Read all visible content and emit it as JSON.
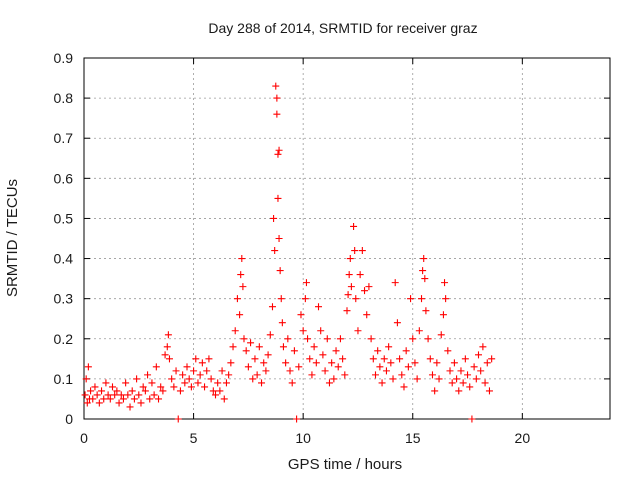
{
  "chart_data": {
    "type": "scatter",
    "title": "Day 288 of 2014, SRMTID for receiver graz",
    "xlabel": "GPS time / hours",
    "ylabel": "SRMTID / TECUs",
    "xlim": [
      0,
      24
    ],
    "ylim": [
      0,
      0.9
    ],
    "xticks": [
      0,
      5,
      10,
      15,
      20
    ],
    "xtick_labels": [
      "0",
      "5",
      "10",
      "15",
      "20"
    ],
    "yticks": [
      0,
      0.1,
      0.2,
      0.3,
      0.4,
      0.5,
      0.6,
      0.7,
      0.8,
      0.9
    ],
    "ytick_labels": [
      "0",
      "0.1",
      "0.2",
      "0.3",
      "0.4",
      "0.5",
      "0.6",
      "0.7",
      "0.8",
      "0.9"
    ],
    "grid": true,
    "marker": "plus",
    "marker_color": "#ff0000",
    "series": [
      {
        "name": "SRMTID",
        "points": [
          [
            0.05,
            0.06
          ],
          [
            0.1,
            0.1
          ],
          [
            0.15,
            0.04
          ],
          [
            0.2,
            0.13
          ],
          [
            0.25,
            0.05
          ],
          [
            0.3,
            0.07
          ],
          [
            0.4,
            0.05
          ],
          [
            0.5,
            0.08
          ],
          [
            0.6,
            0.06
          ],
          [
            0.7,
            0.04
          ],
          [
            0.8,
            0.07
          ],
          [
            0.9,
            0.05
          ],
          [
            1.0,
            0.09
          ],
          [
            1.1,
            0.06
          ],
          [
            1.2,
            0.05
          ],
          [
            1.3,
            0.08
          ],
          [
            1.4,
            0.06
          ],
          [
            1.5,
            0.07
          ],
          [
            1.6,
            0.04
          ],
          [
            1.7,
            0.06
          ],
          [
            1.8,
            0.05
          ],
          [
            1.9,
            0.09
          ],
          [
            2.0,
            0.06
          ],
          [
            2.1,
            0.03
          ],
          [
            2.2,
            0.07
          ],
          [
            2.3,
            0.05
          ],
          [
            2.4,
            0.1
          ],
          [
            2.5,
            0.06
          ],
          [
            2.6,
            0.04
          ],
          [
            2.7,
            0.08
          ],
          [
            2.8,
            0.07
          ],
          [
            2.9,
            0.11
          ],
          [
            3.0,
            0.05
          ],
          [
            3.1,
            0.09
          ],
          [
            3.2,
            0.06
          ],
          [
            3.3,
            0.13
          ],
          [
            3.4,
            0.05
          ],
          [
            3.5,
            0.08
          ],
          [
            3.6,
            0.07
          ],
          [
            3.7,
            0.16
          ],
          [
            3.8,
            0.18
          ],
          [
            3.85,
            0.21
          ],
          [
            3.9,
            0.15
          ],
          [
            4.0,
            0.1
          ],
          [
            4.1,
            0.08
          ],
          [
            4.2,
            0.12
          ],
          [
            4.3,
            0.0
          ],
          [
            4.4,
            0.07
          ],
          [
            4.5,
            0.11
          ],
          [
            4.6,
            0.09
          ],
          [
            4.7,
            0.13
          ],
          [
            4.8,
            0.1
          ],
          [
            4.9,
            0.08
          ],
          [
            5.0,
            0.12
          ],
          [
            5.1,
            0.15
          ],
          [
            5.2,
            0.09
          ],
          [
            5.3,
            0.11
          ],
          [
            5.4,
            0.14
          ],
          [
            5.5,
            0.08
          ],
          [
            5.6,
            0.12
          ],
          [
            5.7,
            0.15
          ],
          [
            5.8,
            0.1
          ],
          [
            5.9,
            0.07
          ],
          [
            6.0,
            0.06
          ],
          [
            6.1,
            0.09
          ],
          [
            6.2,
            0.07
          ],
          [
            6.3,
            0.12
          ],
          [
            6.4,
            0.05
          ],
          [
            6.5,
            0.09
          ],
          [
            6.6,
            0.11
          ],
          [
            6.7,
            0.14
          ],
          [
            6.8,
            0.18
          ],
          [
            6.9,
            0.22
          ],
          [
            7.0,
            0.3
          ],
          [
            7.1,
            0.26
          ],
          [
            7.15,
            0.36
          ],
          [
            7.2,
            0.4
          ],
          [
            7.25,
            0.33
          ],
          [
            7.3,
            0.2
          ],
          [
            7.4,
            0.17
          ],
          [
            7.5,
            0.13
          ],
          [
            7.6,
            0.19
          ],
          [
            7.7,
            0.1
          ],
          [
            7.8,
            0.15
          ],
          [
            7.9,
            0.11
          ],
          [
            8.0,
            0.18
          ],
          [
            8.1,
            0.09
          ],
          [
            8.2,
            0.14
          ],
          [
            8.3,
            0.12
          ],
          [
            8.4,
            0.16
          ],
          [
            8.5,
            0.21
          ],
          [
            8.6,
            0.28
          ],
          [
            8.65,
            0.5
          ],
          [
            8.7,
            0.42
          ],
          [
            8.75,
            0.83
          ],
          [
            8.8,
            0.8
          ],
          [
            8.8,
            0.76
          ],
          [
            8.85,
            0.66
          ],
          [
            8.85,
            0.55
          ],
          [
            8.9,
            0.67
          ],
          [
            8.9,
            0.45
          ],
          [
            8.95,
            0.37
          ],
          [
            9.0,
            0.3
          ],
          [
            9.05,
            0.24
          ],
          [
            9.1,
            0.18
          ],
          [
            9.2,
            0.14
          ],
          [
            9.3,
            0.2
          ],
          [
            9.4,
            0.12
          ],
          [
            9.5,
            0.09
          ],
          [
            9.6,
            0.17
          ],
          [
            9.7,
            0.0
          ],
          [
            9.8,
            0.13
          ],
          [
            9.9,
            0.26
          ],
          [
            10.0,
            0.22
          ],
          [
            10.1,
            0.3
          ],
          [
            10.15,
            0.34
          ],
          [
            10.2,
            0.2
          ],
          [
            10.3,
            0.15
          ],
          [
            10.4,
            0.11
          ],
          [
            10.5,
            0.18
          ],
          [
            10.6,
            0.14
          ],
          [
            10.7,
            0.28
          ],
          [
            10.8,
            0.22
          ],
          [
            10.9,
            0.16
          ],
          [
            11.0,
            0.12
          ],
          [
            11.1,
            0.2
          ],
          [
            11.2,
            0.09
          ],
          [
            11.3,
            0.14
          ],
          [
            11.4,
            0.1
          ],
          [
            11.5,
            0.17
          ],
          [
            11.6,
            0.13
          ],
          [
            11.7,
            0.2
          ],
          [
            11.8,
            0.15
          ],
          [
            11.9,
            0.11
          ],
          [
            12.0,
            0.27
          ],
          [
            12.05,
            0.31
          ],
          [
            12.1,
            0.36
          ],
          [
            12.15,
            0.4
          ],
          [
            12.2,
            0.33
          ],
          [
            12.3,
            0.48
          ],
          [
            12.35,
            0.42
          ],
          [
            12.4,
            0.3
          ],
          [
            12.5,
            0.22
          ],
          [
            12.6,
            0.36
          ],
          [
            12.7,
            0.42
          ],
          [
            12.8,
            0.32
          ],
          [
            12.9,
            0.26
          ],
          [
            13.0,
            0.33
          ],
          [
            13.1,
            0.2
          ],
          [
            13.2,
            0.15
          ],
          [
            13.3,
            0.11
          ],
          [
            13.4,
            0.17
          ],
          [
            13.5,
            0.13
          ],
          [
            13.6,
            0.09
          ],
          [
            13.7,
            0.15
          ],
          [
            13.8,
            0.12
          ],
          [
            13.9,
            0.18
          ],
          [
            14.0,
            0.14
          ],
          [
            14.1,
            0.1
          ],
          [
            14.2,
            0.34
          ],
          [
            14.3,
            0.24
          ],
          [
            14.4,
            0.15
          ],
          [
            14.5,
            0.11
          ],
          [
            14.6,
            0.08
          ],
          [
            14.7,
            0.17
          ],
          [
            14.8,
            0.13
          ],
          [
            14.9,
            0.3
          ],
          [
            15.0,
            0.2
          ],
          [
            15.1,
            0.14
          ],
          [
            15.2,
            0.1
          ],
          [
            15.3,
            0.22
          ],
          [
            15.4,
            0.3
          ],
          [
            15.45,
            0.37
          ],
          [
            15.5,
            0.4
          ],
          [
            15.55,
            0.35
          ],
          [
            15.6,
            0.27
          ],
          [
            15.7,
            0.2
          ],
          [
            15.8,
            0.15
          ],
          [
            15.9,
            0.11
          ],
          [
            16.0,
            0.07
          ],
          [
            16.1,
            0.14
          ],
          [
            16.2,
            0.1
          ],
          [
            16.3,
            0.21
          ],
          [
            16.4,
            0.26
          ],
          [
            16.45,
            0.34
          ],
          [
            16.5,
            0.3
          ],
          [
            16.6,
            0.17
          ],
          [
            16.7,
            0.12
          ],
          [
            16.8,
            0.09
          ],
          [
            16.9,
            0.14
          ],
          [
            17.0,
            0.1
          ],
          [
            17.1,
            0.07
          ],
          [
            17.2,
            0.12
          ],
          [
            17.3,
            0.09
          ],
          [
            17.4,
            0.15
          ],
          [
            17.5,
            0.11
          ],
          [
            17.6,
            0.08
          ],
          [
            17.7,
            0.0
          ],
          [
            17.8,
            0.13
          ],
          [
            17.9,
            0.1
          ],
          [
            18.0,
            0.16
          ],
          [
            18.1,
            0.12
          ],
          [
            18.2,
            0.18
          ],
          [
            18.3,
            0.09
          ],
          [
            18.4,
            0.14
          ],
          [
            18.5,
            0.07
          ],
          [
            18.6,
            0.15
          ]
        ]
      }
    ]
  }
}
